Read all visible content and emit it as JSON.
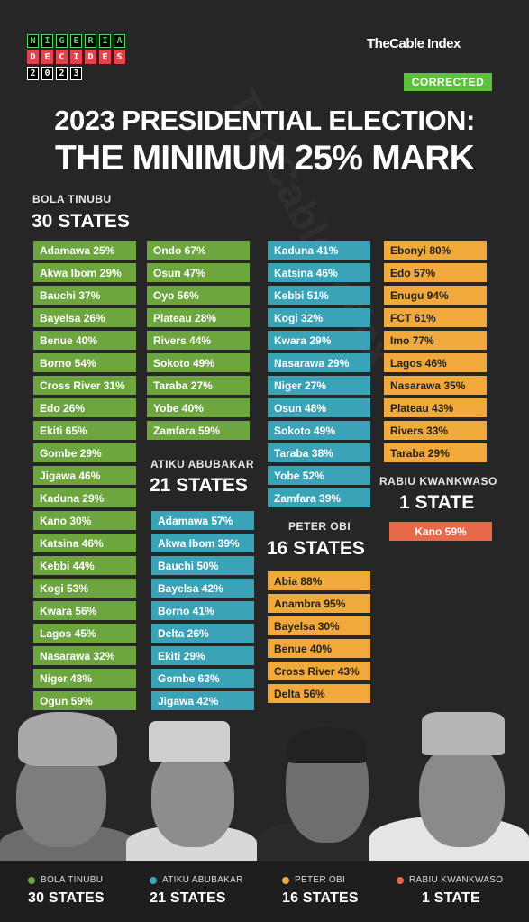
{
  "logo": {
    "row1": [
      "N",
      "I",
      "G",
      "E",
      "R",
      "I",
      "A"
    ],
    "row2": [
      "D",
      "E",
      "C",
      "I",
      "D",
      "E",
      "S"
    ],
    "row3": [
      "2",
      "0",
      "2",
      "3"
    ]
  },
  "brand": "TheCable Index",
  "watermark": "TheCable Index",
  "badge": "CORRECTED",
  "title_line1": "2023 PRESIDENTIAL ELECTION:",
  "title_line2": "THE MINIMUM 25% MARK",
  "colors": {
    "tinubu": "#6da53f",
    "atiku": "#3aa3b7",
    "obi": "#f2a93b",
    "kwankwaso": "#e8694a"
  },
  "tinubu": {
    "name": "BOLA TINUBU",
    "count": "30 STATES",
    "col1": [
      "Adamawa 25%",
      "Akwa Ibom 29%",
      "Bauchi 37%",
      "Bayelsa 26%",
      "Benue 40%",
      "Borno 54%",
      "Cross River 31%",
      "Edo 26%",
      "Ekiti 65%",
      "Gombe 29%",
      "Jigawa 46%",
      "Kaduna 29%",
      "Kano 30%",
      "Katsina 46%",
      "Kebbi 44%",
      "Kogi 53%",
      "Kwara 56%",
      "Lagos 45%",
      "Nasarawa 32%",
      "Niger 48%",
      "Ogun 59%"
    ],
    "col2": [
      "Ondo 67%",
      "Osun 47%",
      "Oyo 56%",
      "Plateau 28%",
      "Rivers 44%",
      "Sokoto 49%",
      "Taraba 27%",
      "Yobe 40%",
      "Zamfara 59%"
    ]
  },
  "atiku": {
    "name": "ATIKU ABUBAKAR",
    "count": "21 STATES",
    "col1": [
      "Adamawa 57%",
      "Akwa Ibom 39%",
      "Bauchi 50%",
      "Bayelsa 42%",
      "Borno 41%",
      "Delta 26%",
      "Ekiti 29%",
      "Gombe 63%",
      "Jigawa 42%"
    ],
    "col2": [
      "Kaduna 41%",
      "Katsina 46%",
      "Kebbi 51%",
      "Kogi 32%",
      "Kwara 29%",
      "Nasarawa 29%",
      "Niger 27%",
      "Osun 48%",
      "Sokoto 49%",
      "Taraba 38%",
      "Yobe 52%",
      "Zamfara 39%"
    ]
  },
  "obi": {
    "name": "PETER OBI",
    "count": "16 STATES",
    "col1": [
      "Abia 88%",
      "Anambra 95%",
      "Bayelsa 30%",
      "Benue 40%",
      "Cross River 43%",
      "Delta 56%"
    ],
    "col2": [
      "Ebonyi 80%",
      "Edo 57%",
      "Enugu 94%",
      "FCT 61%",
      "Imo 77%",
      "Lagos 46%",
      "Nasarawa 35%",
      "Plateau 43%",
      "Rivers 33%",
      "Taraba 29%"
    ]
  },
  "kwankwaso": {
    "name": "RABIU KWANKWASO",
    "count": "1 STATE",
    "col1": [
      "Kano 59%"
    ]
  },
  "footer": [
    {
      "name": "BOLA TINUBU",
      "count": "30 STATES"
    },
    {
      "name": "ATIKU ABUBAKAR",
      "count": "21 STATES"
    },
    {
      "name": "PETER OBI",
      "count": "16 STATES"
    },
    {
      "name": "RABIU KWANKWASO",
      "count": "1 STATE"
    }
  ]
}
